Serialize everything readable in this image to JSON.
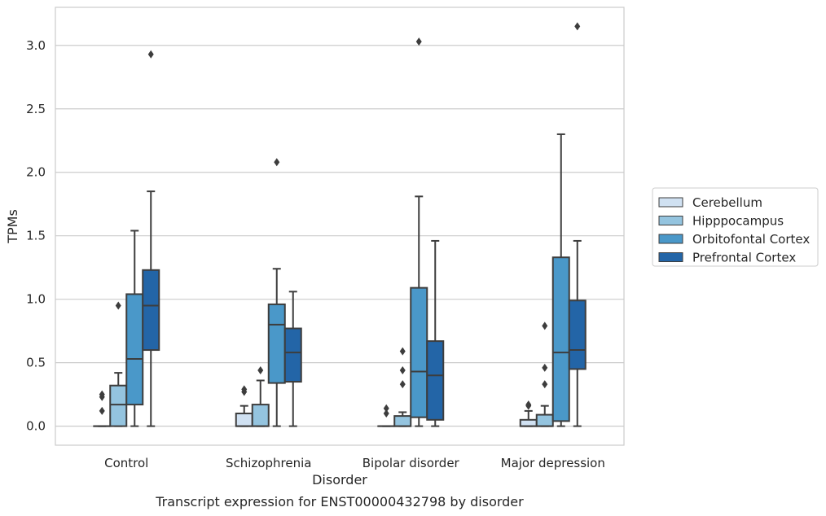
{
  "chart_data": {
    "type": "box",
    "caption": "Transcript expression for ENST00000432798 by disorder",
    "xlabel": "Disorder",
    "ylabel": "TPMs",
    "ylim": [
      -0.15,
      3.3
    ],
    "yticks": [
      0.0,
      0.5,
      1.0,
      1.5,
      2.0,
      2.5,
      3.0
    ],
    "ytick_labels": [
      "0.0",
      "0.5",
      "1.0",
      "1.5",
      "2.0",
      "2.5",
      "3.0"
    ],
    "grid": "horizontal",
    "legend_position": "right",
    "categories": [
      "Control",
      "Schizophrenia",
      "Bipolar disorder",
      "Major depression"
    ],
    "series": [
      {
        "name": "Cerebellum",
        "color": "#d0e1f2",
        "boxes": [
          {
            "whislo": 0.0,
            "q1": 0.0,
            "med": 0.0,
            "q3": 0.0,
            "whishi": 0.0,
            "fliers": [
              0.12,
              0.23,
              0.25
            ]
          },
          {
            "whislo": 0.0,
            "q1": 0.0,
            "med": 0.0,
            "q3": 0.1,
            "whishi": 0.16,
            "fliers": [
              0.27,
              0.29
            ]
          },
          {
            "whislo": 0.0,
            "q1": 0.0,
            "med": 0.0,
            "q3": 0.0,
            "whishi": 0.0,
            "fliers": [
              0.1,
              0.14
            ]
          },
          {
            "whislo": 0.0,
            "q1": 0.0,
            "med": 0.0,
            "q3": 0.05,
            "whishi": 0.12,
            "fliers": [
              0.16,
              0.17
            ]
          }
        ]
      },
      {
        "name": "Hipppocampus",
        "color": "#94c4df",
        "boxes": [
          {
            "whislo": 0.0,
            "q1": 0.0,
            "med": 0.17,
            "q3": 0.32,
            "whishi": 0.42,
            "fliers": [
              0.95
            ]
          },
          {
            "whislo": 0.0,
            "q1": 0.0,
            "med": 0.0,
            "q3": 0.17,
            "whishi": 0.36,
            "fliers": [
              0.44
            ]
          },
          {
            "whislo": 0.0,
            "q1": 0.0,
            "med": 0.0,
            "q3": 0.08,
            "whishi": 0.11,
            "fliers": [
              0.33,
              0.44,
              0.59
            ]
          },
          {
            "whislo": 0.0,
            "q1": 0.0,
            "med": 0.0,
            "q3": 0.09,
            "whishi": 0.16,
            "fliers": [
              0.33,
              0.46,
              0.79
            ]
          }
        ]
      },
      {
        "name": "Orbitofontal Cortex",
        "color": "#4a98c9",
        "boxes": [
          {
            "whislo": 0.0,
            "q1": 0.17,
            "med": 0.53,
            "q3": 1.04,
            "whishi": 1.54,
            "fliers": []
          },
          {
            "whislo": 0.0,
            "q1": 0.34,
            "med": 0.8,
            "q3": 0.96,
            "whishi": 1.24,
            "fliers": [
              2.08
            ]
          },
          {
            "whislo": 0.0,
            "q1": 0.07,
            "med": 0.43,
            "q3": 1.09,
            "whishi": 1.81,
            "fliers": [
              3.03
            ]
          },
          {
            "whislo": 0.0,
            "q1": 0.04,
            "med": 0.58,
            "q3": 1.33,
            "whishi": 2.3,
            "fliers": []
          }
        ]
      },
      {
        "name": "Prefrontal Cortex",
        "color": "#2365a7",
        "boxes": [
          {
            "whislo": 0.0,
            "q1": 0.6,
            "med": 0.95,
            "q3": 1.23,
            "whishi": 1.85,
            "fliers": [
              2.93
            ]
          },
          {
            "whislo": 0.0,
            "q1": 0.35,
            "med": 0.58,
            "q3": 0.77,
            "whishi": 1.06,
            "fliers": []
          },
          {
            "whislo": 0.0,
            "q1": 0.05,
            "med": 0.4,
            "q3": 0.67,
            "whishi": 1.46,
            "fliers": []
          },
          {
            "whislo": 0.0,
            "q1": 0.45,
            "med": 0.6,
            "q3": 0.99,
            "whishi": 1.46,
            "fliers": [
              3.15
            ]
          }
        ]
      }
    ]
  }
}
